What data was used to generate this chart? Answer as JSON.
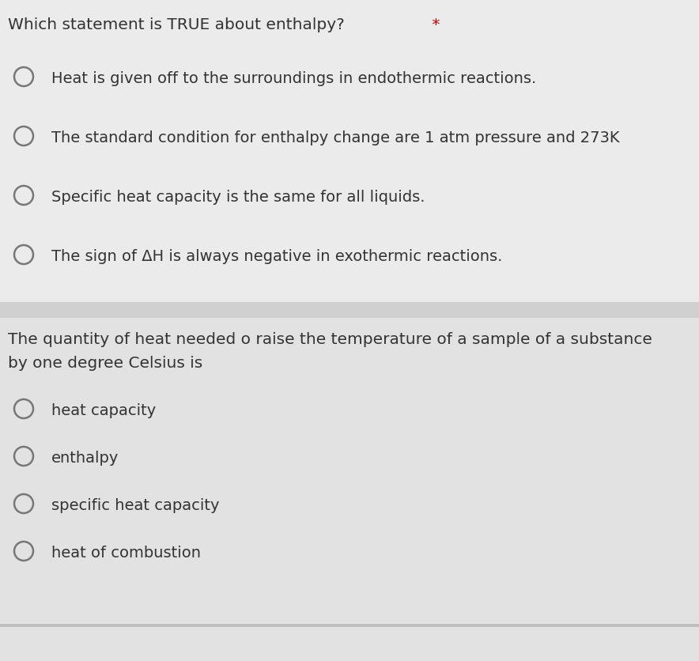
{
  "bg_top": "#ebebeb",
  "bg_bottom": "#e2e2e2",
  "separator_color": "#c8c8c8",
  "bottom_bar_color": "#c0c0c0",
  "q1_title_main": "Which statement is TRUE about enthalpy?",
  "q1_star": " *",
  "q1_star_color": "#cc0000",
  "q1_options": [
    "Heat is given off to the surroundings in endothermic reactions.",
    "The standard condition for enthalpy change are 1 atm pressure and 273K",
    "Specific heat capacity is the same for all liquids.",
    "The sign of ΔH is always negative in exothermic reactions."
  ],
  "q2_line1": "The quantity of heat needed o raise the temperature of a sample of a substance",
  "q2_line2": "by one degree Celsius is",
  "q2_options": [
    "heat capacity",
    "enthalpy",
    "specific heat capacity",
    "heat of combustion"
  ],
  "text_color": "#333333",
  "circle_color": "#777777",
  "title_fontsize": 14.5,
  "option_fontsize": 14.0,
  "q2_title_fontsize": 14.5
}
